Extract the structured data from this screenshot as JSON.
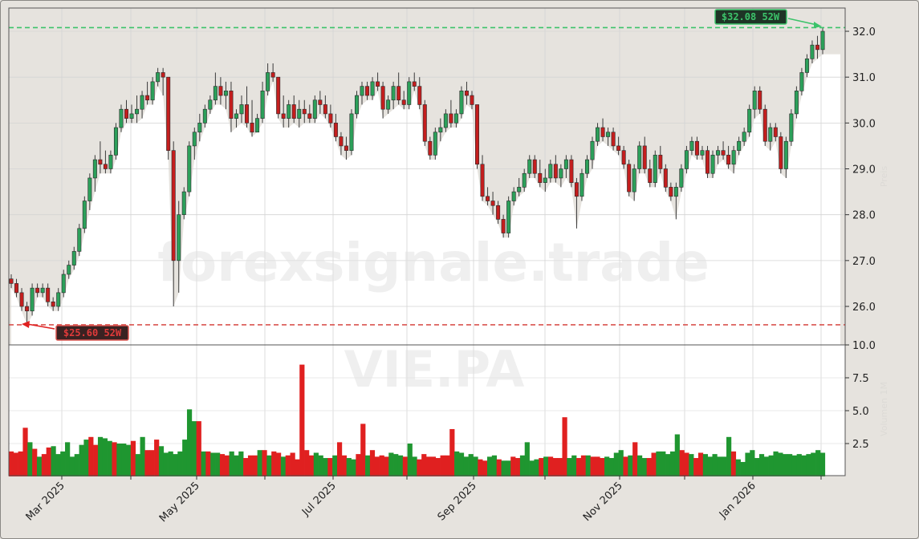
{
  "chart_data": {
    "type": "candlestick",
    "ticker": "VIE.PA",
    "watermark": "forexsignale.trade",
    "title": "",
    "price_axis": {
      "ticks": [
        "26.0",
        "27.0",
        "28.0",
        "29.0",
        "30.0",
        "31.0",
        "32.0"
      ],
      "range": [
        25.2,
        32.5
      ],
      "label": "Preis"
    },
    "volume_axis": {
      "ticks": [
        "2.5",
        "5.0",
        "7.5",
        "10.0"
      ],
      "range": [
        0,
        10.0
      ],
      "label": "Volumen 1M"
    },
    "x_ticks": [
      "Mar 2025",
      "May 2025",
      "Jul 2025",
      "Sep 2025",
      "Nov 2025",
      "Jan 2026"
    ],
    "high_52w": {
      "label": "$32.08 52W",
      "value": 32.08
    },
    "low_52w": {
      "label": "$25.60 52W",
      "value": 25.6
    },
    "colors": {
      "up": "#2ca05a",
      "down": "#c41e1e",
      "vol_up": "#1f9630",
      "vol_down": "#e02020",
      "high_line": "#3cc36a",
      "low_line": "#d9534f",
      "shade": "#e6e3de",
      "plot_bg": "#ffffff"
    },
    "grid": true,
    "candles_ohlc_sample": [
      [
        26.6,
        26.7,
        26.4,
        26.5
      ],
      [
        26.5,
        26.6,
        26.2,
        26.3
      ],
      [
        26.3,
        26.4,
        25.9,
        26.0
      ],
      [
        26.0,
        26.1,
        25.6,
        25.9
      ],
      [
        25.9,
        26.5,
        25.8,
        26.4
      ],
      [
        26.4,
        26.5,
        26.2,
        26.3
      ],
      [
        26.3,
        26.5,
        26.2,
        26.4
      ],
      [
        26.4,
        26.5,
        26.0,
        26.1
      ],
      [
        26.1,
        26.2,
        25.9,
        26.0
      ],
      [
        26.0,
        26.4,
        25.9,
        26.3
      ],
      [
        26.3,
        26.8,
        26.2,
        26.7
      ],
      [
        26.7,
        27.0,
        26.6,
        26.9
      ],
      [
        26.9,
        27.3,
        26.8,
        27.2
      ],
      [
        27.2,
        27.8,
        27.1,
        27.7
      ],
      [
        27.7,
        28.4,
        27.6,
        28.3
      ],
      [
        28.3,
        28.9,
        28.1,
        28.8
      ],
      [
        28.8,
        29.3,
        28.5,
        29.2
      ],
      [
        29.2,
        29.6,
        28.9,
        29.1
      ],
      [
        29.1,
        29.4,
        28.9,
        29.0
      ],
      [
        29.0,
        29.4,
        28.9,
        29.3
      ],
      [
        29.3,
        30.0,
        29.2,
        29.9
      ],
      [
        29.9,
        30.4,
        29.8,
        30.3
      ],
      [
        30.3,
        30.5,
        30.0,
        30.1
      ],
      [
        30.1,
        30.4,
        30.0,
        30.2
      ],
      [
        30.2,
        30.6,
        30.0,
        30.3
      ],
      [
        30.3,
        30.7,
        30.1,
        30.6
      ],
      [
        30.6,
        30.9,
        30.4,
        30.5
      ],
      [
        30.5,
        31.0,
        30.4,
        30.9
      ],
      [
        30.9,
        31.2,
        30.8,
        31.1
      ],
      [
        31.1,
        31.2,
        30.6,
        31.0
      ],
      [
        31.0,
        31.0,
        29.2,
        29.4
      ],
      [
        29.4,
        29.6,
        26.0,
        27.0
      ],
      [
        27.0,
        28.3,
        26.3,
        28.0
      ],
      [
        28.0,
        28.6,
        27.9,
        28.5
      ],
      [
        28.5,
        29.6,
        28.4,
        29.5
      ],
      [
        29.5,
        29.9,
        29.2,
        29.8
      ],
      [
        29.8,
        30.2,
        29.6,
        30.0
      ],
      [
        30.0,
        30.4,
        29.9,
        30.3
      ],
      [
        30.3,
        30.6,
        30.2,
        30.5
      ],
      [
        30.5,
        31.1,
        30.4,
        30.8
      ],
      [
        30.8,
        31.0,
        30.4,
        30.6
      ],
      [
        30.6,
        30.9,
        30.3,
        30.7
      ],
      [
        30.7,
        30.9,
        29.8,
        30.1
      ],
      [
        30.1,
        30.3,
        29.9,
        30.2
      ],
      [
        30.2,
        30.6,
        30.0,
        30.4
      ],
      [
        30.4,
        30.8,
        29.9,
        30.0
      ],
      [
        30.0,
        30.5,
        29.7,
        29.8
      ],
      [
        29.8,
        30.2,
        29.8,
        30.1
      ],
      [
        30.1,
        30.9,
        30.0,
        30.7
      ],
      [
        30.7,
        31.3,
        30.6,
        31.1
      ],
      [
        31.1,
        31.3,
        30.9,
        31.0
      ],
      [
        31.0,
        31.0,
        30.1,
        30.2
      ],
      [
        30.2,
        30.6,
        29.9,
        30.1
      ],
      [
        30.1,
        30.5,
        29.9,
        30.4
      ],
      [
        30.4,
        30.6,
        30.0,
        30.1
      ],
      [
        30.1,
        30.5,
        29.9,
        30.3
      ],
      [
        30.3,
        30.5,
        30.0,
        30.2
      ],
      [
        30.2,
        30.4,
        30.0,
        30.1
      ],
      [
        30.1,
        30.6,
        30.0,
        30.5
      ],
      [
        30.5,
        30.7,
        30.2,
        30.4
      ],
      [
        30.4,
        30.6,
        30.1,
        30.2
      ],
      [
        30.2,
        30.4,
        29.9,
        30.0
      ],
      [
        30.0,
        30.2,
        29.6,
        29.7
      ],
      [
        29.7,
        29.8,
        29.3,
        29.5
      ],
      [
        29.5,
        29.7,
        29.2,
        29.4
      ],
      [
        29.4,
        30.3,
        29.3,
        30.2
      ],
      [
        30.2,
        30.7,
        30.1,
        30.6
      ],
      [
        30.6,
        30.9,
        30.4,
        30.8
      ],
      [
        30.8,
        30.9,
        30.5,
        30.6
      ],
      [
        30.6,
        31.0,
        30.5,
        30.9
      ],
      [
        30.9,
        31.1,
        30.7,
        30.8
      ],
      [
        30.8,
        30.9,
        30.1,
        30.3
      ],
      [
        30.3,
        30.6,
        30.2,
        30.5
      ],
      [
        30.5,
        30.9,
        30.3,
        30.8
      ],
      [
        30.8,
        31.1,
        30.4,
        30.5
      ],
      [
        30.5,
        30.7,
        30.3,
        30.4
      ],
      [
        30.4,
        31.0,
        30.3,
        30.9
      ],
      [
        30.9,
        31.1,
        30.7,
        30.8
      ],
      [
        30.8,
        31.0,
        30.3,
        30.4
      ],
      [
        30.4,
        30.5,
        29.5,
        29.6
      ],
      [
        29.6,
        29.7,
        29.2,
        29.3
      ],
      [
        29.3,
        29.9,
        29.2,
        29.8
      ],
      [
        29.8,
        30.1,
        29.6,
        29.9
      ],
      [
        29.9,
        30.3,
        29.8,
        30.2
      ],
      [
        30.2,
        30.5,
        29.9,
        30.0
      ],
      [
        30.0,
        30.3,
        29.9,
        30.2
      ],
      [
        30.2,
        30.8,
        30.1,
        30.7
      ],
      [
        30.7,
        30.9,
        30.4,
        30.6
      ],
      [
        30.6,
        30.7,
        30.3,
        30.4
      ],
      [
        30.4,
        30.4,
        29.0,
        29.1
      ],
      [
        29.1,
        29.3,
        28.3,
        28.4
      ],
      [
        28.4,
        28.6,
        28.2,
        28.3
      ],
      [
        28.3,
        28.5,
        28.0,
        28.2
      ],
      [
        28.2,
        28.3,
        27.8,
        27.9
      ],
      [
        27.9,
        28.0,
        27.5,
        27.6
      ],
      [
        27.6,
        28.4,
        27.5,
        28.3
      ],
      [
        28.3,
        28.6,
        28.2,
        28.5
      ],
      [
        28.5,
        28.8,
        28.4,
        28.6
      ],
      [
        28.6,
        29.0,
        28.5,
        28.9
      ],
      [
        28.9,
        29.3,
        28.8,
        29.2
      ],
      [
        29.2,
        29.3,
        28.8,
        28.9
      ],
      [
        28.9,
        29.2,
        28.6,
        28.7
      ],
      [
        28.7,
        29.0,
        28.5,
        28.8
      ],
      [
        28.8,
        29.2,
        28.7,
        29.1
      ],
      [
        29.1,
        29.3,
        28.7,
        28.8
      ],
      [
        28.8,
        29.1,
        28.6,
        29.0
      ],
      [
        29.0,
        29.3,
        28.8,
        29.2
      ],
      [
        29.2,
        29.3,
        28.6,
        28.7
      ],
      [
        28.7,
        28.8,
        27.7,
        28.4
      ],
      [
        28.4,
        29.0,
        28.3,
        28.9
      ],
      [
        28.9,
        29.3,
        28.8,
        29.2
      ],
      [
        29.2,
        29.7,
        29.0,
        29.6
      ],
      [
        29.6,
        30.0,
        29.5,
        29.9
      ],
      [
        29.9,
        30.1,
        29.6,
        29.7
      ],
      [
        29.7,
        29.9,
        29.5,
        29.8
      ],
      [
        29.8,
        29.9,
        29.4,
        29.5
      ],
      [
        29.5,
        29.7,
        29.3,
        29.4
      ],
      [
        29.4,
        29.5,
        29.0,
        29.1
      ],
      [
        29.1,
        29.2,
        28.4,
        28.5
      ],
      [
        28.5,
        29.1,
        28.3,
        29.0
      ],
      [
        29.0,
        29.6,
        28.9,
        29.5
      ],
      [
        29.5,
        29.7,
        28.9,
        29.0
      ],
      [
        29.0,
        29.2,
        28.6,
        28.7
      ],
      [
        28.7,
        29.4,
        28.6,
        29.3
      ],
      [
        29.3,
        29.5,
        28.9,
        29.0
      ],
      [
        29.0,
        29.1,
        28.5,
        28.6
      ],
      [
        28.6,
        28.7,
        28.3,
        28.4
      ],
      [
        28.4,
        28.7,
        27.9,
        28.6
      ],
      [
        28.6,
        29.1,
        28.5,
        29.0
      ],
      [
        29.0,
        29.5,
        28.9,
        29.4
      ],
      [
        29.4,
        29.7,
        29.3,
        29.6
      ],
      [
        29.6,
        29.7,
        29.2,
        29.3
      ],
      [
        29.3,
        29.5,
        29.2,
        29.4
      ],
      [
        29.4,
        29.5,
        28.8,
        28.9
      ],
      [
        28.9,
        29.4,
        28.8,
        29.3
      ],
      [
        29.3,
        29.5,
        29.1,
        29.4
      ],
      [
        29.4,
        29.6,
        29.2,
        29.3
      ],
      [
        29.3,
        29.5,
        29.0,
        29.1
      ],
      [
        29.1,
        29.5,
        28.9,
        29.4
      ],
      [
        29.4,
        29.7,
        29.3,
        29.6
      ],
      [
        29.6,
        29.9,
        29.5,
        29.8
      ],
      [
        29.8,
        30.4,
        29.7,
        30.3
      ],
      [
        30.3,
        30.8,
        30.1,
        30.7
      ],
      [
        30.7,
        30.8,
        30.2,
        30.3
      ],
      [
        30.3,
        30.4,
        29.5,
        29.6
      ],
      [
        29.6,
        30.0,
        29.4,
        29.9
      ],
      [
        29.9,
        30.0,
        29.6,
        29.7
      ],
      [
        29.7,
        29.8,
        28.9,
        29.0
      ],
      [
        29.0,
        29.7,
        28.8,
        29.6
      ],
      [
        29.6,
        30.3,
        29.5,
        30.2
      ],
      [
        30.2,
        30.8,
        30.1,
        30.7
      ],
      [
        30.7,
        31.2,
        30.6,
        31.1
      ],
      [
        31.1,
        31.5,
        31.0,
        31.4
      ],
      [
        31.4,
        31.8,
        31.3,
        31.7
      ],
      [
        31.7,
        31.9,
        31.4,
        31.6
      ],
      [
        31.6,
        32.08,
        31.5,
        32.0
      ]
    ],
    "volumes_M_sample": [
      1.9,
      1.8,
      1.9,
      3.7,
      2.6,
      2.1,
      1.5,
      1.7,
      2.2,
      2.3,
      1.7,
      1.9,
      2.6,
      1.5,
      1.7,
      2.4,
      2.8,
      3.0,
      2.4,
      3.0,
      2.9,
      2.7,
      2.6,
      2.5,
      2.5,
      2.4,
      2.7,
      1.7,
      3.0,
      2.0,
      2.0,
      2.8,
      2.3,
      1.8,
      1.9,
      1.7,
      1.9,
      2.8,
      5.1,
      4.2,
      4.2,
      1.9,
      1.9,
      1.8,
      1.8,
      1.7,
      1.6,
      1.9,
      1.6,
      1.9,
      1.4,
      1.6,
      1.6,
      2.0,
      2.0,
      1.6,
      1.9,
      1.8,
      1.5,
      1.6,
      1.8,
      1.3,
      8.5,
      2.0,
      1.6,
      1.8,
      1.6,
      1.4,
      1.4,
      1.6,
      2.6,
      1.6,
      1.4,
      1.3,
      1.7,
      4.0,
      1.6,
      2.0,
      1.5,
      1.6,
      1.5,
      1.8,
      1.7,
      1.6,
      1.5,
      2.5,
      1.5,
      1.3,
      1.7,
      1.5,
      1.5,
      1.4,
      1.6,
      1.6,
      3.6,
      1.9,
      1.8,
      1.5,
      1.7,
      1.5,
      1.3,
      1.2,
      1.5,
      1.6,
      1.3,
      1.2,
      1.2,
      1.5,
      1.4,
      1.6,
      2.6,
      1.2,
      1.3,
      1.4,
      1.5,
      1.5,
      1.4,
      1.4,
      4.5,
      1.4,
      1.6,
      1.4,
      1.6,
      1.6,
      1.5,
      1.5,
      1.4,
      1.5,
      1.4,
      1.8,
      2.0,
      1.5,
      1.6,
      2.6,
      1.6,
      1.4,
      1.4,
      1.8,
      1.9,
      1.9,
      1.7,
      1.9,
      3.2,
      2.0,
      1.8,
      1.7,
      1.4,
      1.8,
      1.7,
      1.5,
      1.7,
      1.5,
      1.5,
      3.0,
      1.9,
      1.3,
      1.1,
      1.8,
      2.0,
      1.4,
      1.7,
      1.5,
      1.6,
      1.9,
      1.8,
      1.7,
      1.7,
      1.6,
      1.7,
      1.6,
      1.7,
      1.8,
      2.0,
      1.8
    ]
  }
}
